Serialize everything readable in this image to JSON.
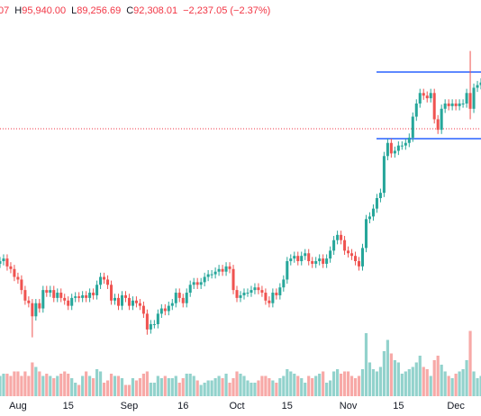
{
  "chart_data": {
    "type": "candlestick",
    "header": [
      {
        "text": "07"
      },
      {
        "label": "H",
        "text": "95,940.00"
      },
      {
        "label": "L",
        "text": "89,256.69"
      },
      {
        "label": "C",
        "text": "92,308.01"
      },
      {
        "text": "−2,237.05 (−2.37%)"
      }
    ],
    "categories": [
      null,
      null,
      null,
      null,
      null,
      "Aug",
      null,
      null,
      null,
      null,
      null,
      null,
      null,
      null,
      null,
      null,
      null,
      null,
      null,
      "15",
      null,
      null,
      null,
      null,
      null,
      null,
      null,
      null,
      null,
      null,
      null,
      null,
      null,
      null,
      null,
      null,
      "Sep",
      null,
      null,
      null,
      null,
      null,
      null,
      null,
      null,
      null,
      null,
      null,
      null,
      null,
      null,
      "16",
      null,
      null,
      null,
      null,
      null,
      null,
      null,
      null,
      null,
      null,
      null,
      null,
      null,
      null,
      "Oct",
      null,
      null,
      null,
      null,
      null,
      null,
      null,
      null,
      null,
      null,
      null,
      null,
      null,
      "15",
      null,
      null,
      null,
      null,
      null,
      null,
      null,
      null,
      null,
      null,
      null,
      null,
      null,
      null,
      null,
      null,
      "Nov",
      null,
      null,
      null,
      null,
      null,
      null,
      null,
      null,
      null,
      null,
      null,
      null,
      null,
      "15",
      null,
      null,
      null,
      null,
      null,
      null,
      null,
      null,
      null,
      null,
      null,
      null,
      null,
      null,
      null,
      "Dec",
      null,
      null,
      null,
      null,
      null,
      null,
      null
    ],
    "open": [
      63000,
      63500,
      64000,
      62500,
      62000,
      60500,
      60000,
      58000,
      56000,
      55500,
      53000,
      55500,
      54500,
      58000,
      57500,
      58000,
      56500,
      57500,
      56500,
      56000,
      55000,
      56500,
      56800,
      56500,
      57000,
      56500,
      57500,
      57000,
      59000,
      60500,
      60000,
      59000,
      56000,
      56500,
      55000,
      57000,
      56500,
      55000,
      56000,
      55500,
      55000,
      53500,
      50500,
      51500,
      51500,
      53500,
      54500,
      54000,
      55000,
      55500,
      57500,
      56500,
      55500,
      57500,
      59000,
      59500,
      59000,
      59500,
      60500,
      61000,
      61000,
      61500,
      62000,
      61500,
      62500,
      62000,
      58000,
      56500,
      57000,
      57500,
      57500,
      58000,
      58500,
      58000,
      57500,
      56000,
      55500,
      57500,
      57000,
      58500,
      60000,
      63500,
      64000,
      64500,
      63500,
      64500,
      65000,
      63500,
      63000,
      63500,
      64000,
      63000,
      64000,
      65500,
      67500,
      68500,
      67500,
      65500,
      65000,
      64500,
      63500,
      62500,
      66000,
      71500,
      72000,
      73500,
      75500,
      76500,
      83500,
      86000,
      84000,
      84500,
      85500,
      85500,
      86000,
      87000,
      91000,
      93500,
      95500,
      95000,
      94500,
      95500,
      90500,
      88500,
      92500,
      93500,
      93000,
      93500,
      93000,
      93500,
      93500,
      95500,
      92500,
      96500,
      97000
    ],
    "high": [
      64300,
      64800,
      64800,
      63300,
      62800,
      61300,
      60800,
      58800,
      56800,
      56300,
      56300,
      56300,
      58800,
      58800,
      58800,
      58800,
      58300,
      58300,
      57300,
      56800,
      57300,
      57600,
      57600,
      57800,
      57800,
      58300,
      58300,
      59800,
      61300,
      61300,
      60800,
      59800,
      57300,
      57300,
      57800,
      57800,
      57300,
      56800,
      56800,
      56300,
      55800,
      54300,
      52300,
      52300,
      54300,
      55300,
      55300,
      55800,
      56300,
      58300,
      58300,
      57300,
      58300,
      59800,
      60300,
      60300,
      60300,
      61300,
      61800,
      61800,
      62300,
      62800,
      62800,
      63300,
      63300,
      62800,
      58800,
      57800,
      58300,
      58300,
      58800,
      59300,
      59300,
      58800,
      58300,
      56800,
      58300,
      58300,
      59300,
      60800,
      64300,
      64800,
      65300,
      65300,
      65300,
      65800,
      65800,
      64300,
      64300,
      64800,
      64800,
      64800,
      66300,
      68300,
      69300,
      69300,
      68300,
      66300,
      65800,
      65300,
      64300,
      66800,
      72300,
      72800,
      74300,
      76300,
      77300,
      84300,
      86800,
      86800,
      85300,
      86300,
      86300,
      86800,
      87800,
      91800,
      94300,
      96300,
      96300,
      95800,
      96300,
      96300,
      91300,
      93300,
      94300,
      94300,
      94300,
      94300,
      94300,
      94300,
      96300,
      103500,
      97300,
      97800,
      98300
    ],
    "low": [
      62200,
      62700,
      61700,
      61200,
      59700,
      59200,
      57200,
      55200,
      54700,
      49000,
      52200,
      53700,
      53700,
      56700,
      56700,
      55700,
      55700,
      55700,
      55200,
      54200,
      54200,
      55700,
      55700,
      55700,
      55700,
      55700,
      56200,
      56200,
      58200,
      59200,
      58200,
      55200,
      55200,
      54200,
      54200,
      55700,
      54200,
      54200,
      54700,
      54200,
      52700,
      49500,
      49700,
      50700,
      50700,
      52700,
      53200,
      53200,
      54200,
      54700,
      55700,
      54700,
      54700,
      56700,
      58200,
      58200,
      58200,
      58700,
      59700,
      60200,
      60200,
      60700,
      60700,
      60700,
      61200,
      57200,
      55700,
      55700,
      56200,
      56700,
      56700,
      57200,
      57200,
      56700,
      55200,
      54700,
      54700,
      56200,
      56200,
      57700,
      59200,
      62700,
      63200,
      62700,
      62700,
      63700,
      62700,
      62200,
      62200,
      62700,
      62200,
      62200,
      63200,
      64700,
      66700,
      66700,
      64700,
      64200,
      63700,
      62700,
      61700,
      61700,
      65200,
      70700,
      71200,
      72700,
      74700,
      75700,
      82700,
      83200,
      83200,
      83700,
      84700,
      84700,
      85200,
      86200,
      90200,
      92700,
      94200,
      93700,
      93700,
      89700,
      87700,
      87700,
      91700,
      92200,
      92200,
      92200,
      92200,
      92700,
      92700,
      90500,
      91700,
      95700,
      96200
    ],
    "close": [
      63500,
      64000,
      62500,
      62000,
      60500,
      60000,
      58000,
      56000,
      55500,
      53000,
      55500,
      54500,
      58000,
      57500,
      58000,
      56500,
      57500,
      56500,
      56000,
      55000,
      56500,
      56800,
      56500,
      57000,
      56500,
      57500,
      57000,
      59000,
      60500,
      60000,
      59000,
      56000,
      56500,
      55000,
      57000,
      56500,
      55000,
      56000,
      55500,
      55000,
      53500,
      50500,
      51500,
      51500,
      53500,
      54500,
      54000,
      55000,
      55500,
      57500,
      56500,
      55500,
      57500,
      59000,
      59500,
      59000,
      59500,
      60500,
      61000,
      61000,
      61500,
      62000,
      61500,
      62500,
      62000,
      58000,
      56500,
      57000,
      57500,
      57500,
      58000,
      58500,
      58000,
      57500,
      56000,
      55500,
      57500,
      57000,
      58500,
      60000,
      63500,
      64000,
      64500,
      63500,
      64500,
      65000,
      63500,
      63000,
      63500,
      64000,
      63000,
      64000,
      65500,
      67500,
      68500,
      67500,
      65500,
      65000,
      64500,
      63500,
      62500,
      66000,
      71500,
      72000,
      73500,
      75500,
      76500,
      83500,
      86000,
      84000,
      84500,
      85500,
      85500,
      86000,
      87000,
      91000,
      93500,
      95500,
      95000,
      94500,
      95500,
      90500,
      88500,
      92500,
      93500,
      93000,
      93500,
      93000,
      93500,
      93500,
      95500,
      92500,
      96500,
      97000,
      97500
    ],
    "volume": [
      90,
      100,
      100,
      90,
      110,
      110,
      90,
      110,
      90,
      150,
      130,
      110,
      90,
      100,
      90,
      80,
      90,
      100,
      110,
      100,
      80,
      60,
      50,
      90,
      110,
      90,
      80,
      120,
      110,
      60,
      70,
      100,
      90,
      90,
      80,
      50,
      50,
      80,
      70,
      80,
      100,
      110,
      60,
      60,
      90,
      80,
      90,
      80,
      80,
      90,
      60,
      80,
      100,
      100,
      90,
      70,
      50,
      60,
      70,
      70,
      80,
      90,
      80,
      100,
      60,
      80,
      110,
      100,
      90,
      70,
      60,
      60,
      70,
      90,
      90,
      80,
      70,
      60,
      80,
      90,
      120,
      110,
      100,
      90,
      80,
      60,
      90,
      80,
      90,
      100,
      110,
      60,
      70,
      110,
      120,
      100,
      110,
      110,
      90,
      80,
      90,
      120,
      280,
      150,
      120,
      110,
      130,
      200,
      250,
      190,
      160,
      150,
      100,
      110,
      120,
      130,
      150,
      180,
      130,
      120,
      90,
      160,
      180,
      140,
      110,
      90,
      80,
      100,
      110,
      120,
      160,
      290,
      110,
      80,
      90
    ],
    "ylim": [
      37800,
      113200
    ],
    "volume_lim": [
      0,
      1760
    ],
    "up_color": "#26a69a",
    "down_color": "#ef5350",
    "hlines": [
      {
        "value": 99500,
        "color": "#2962ff"
      },
      {
        "value": 86800,
        "color": "#2962ff"
      }
    ],
    "price_line": {
      "value": 88700,
      "color": "#f23645"
    }
  }
}
